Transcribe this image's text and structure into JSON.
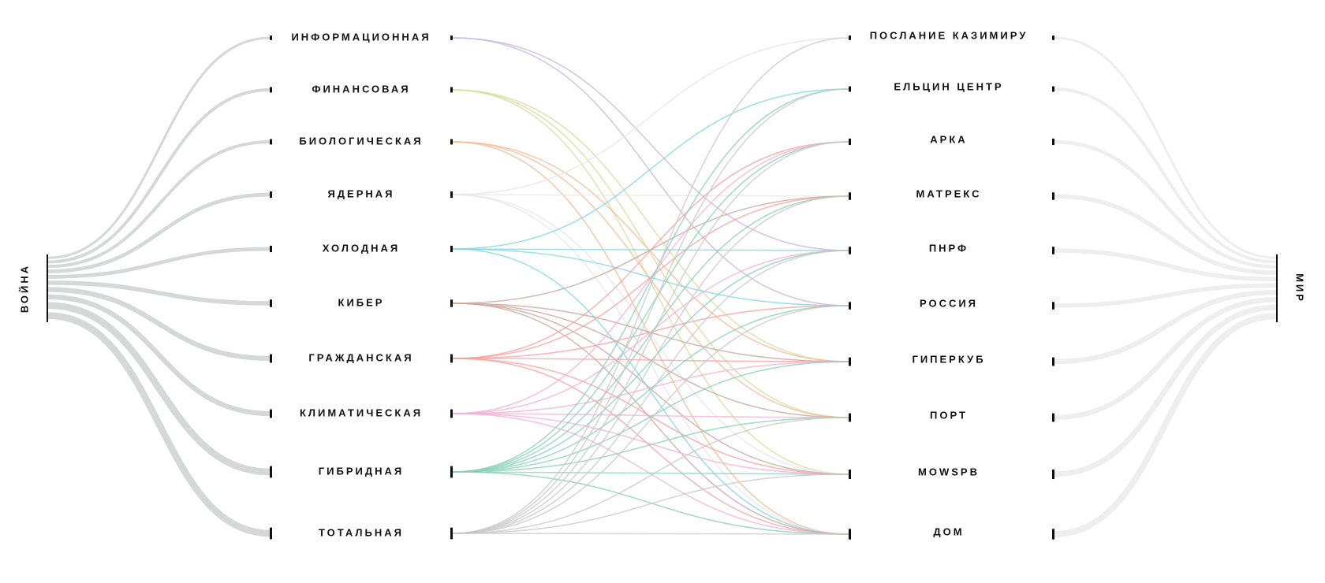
{
  "left_root": {
    "label": "ВОЙНА"
  },
  "right_root": {
    "label": "МИР"
  },
  "left_nodes": [
    {
      "label": "ИНФОРМАЦИОННАЯ"
    },
    {
      "label": "ФИНАНСОВАЯ"
    },
    {
      "label": "БИОЛОГИЧЕСКАЯ"
    },
    {
      "label": "ЯДЕРНАЯ"
    },
    {
      "label": "ХОЛОДНАЯ"
    },
    {
      "label": "КИБЕР"
    },
    {
      "label": "ГРАЖДАНСКАЯ"
    },
    {
      "label": "КЛИМАТИЧЕСКАЯ"
    },
    {
      "label": "ГИБРИДНАЯ"
    },
    {
      "label": "ТОТАЛЬНАЯ"
    }
  ],
  "right_nodes": [
    {
      "label": "ПОСЛАНИЕ КАЗИМИРУ"
    },
    {
      "label": "ЕЛЬЦИН ЦЕНТР"
    },
    {
      "label": "АРКА"
    },
    {
      "label": "МАТРЕКС"
    },
    {
      "label": "ПНРФ"
    },
    {
      "label": "РОССИЯ"
    },
    {
      "label": "ГИПЕРКУБ"
    },
    {
      "label": "ПОРТ"
    },
    {
      "label": "MOWSPB"
    },
    {
      "label": "ДОМ"
    }
  ]
}
